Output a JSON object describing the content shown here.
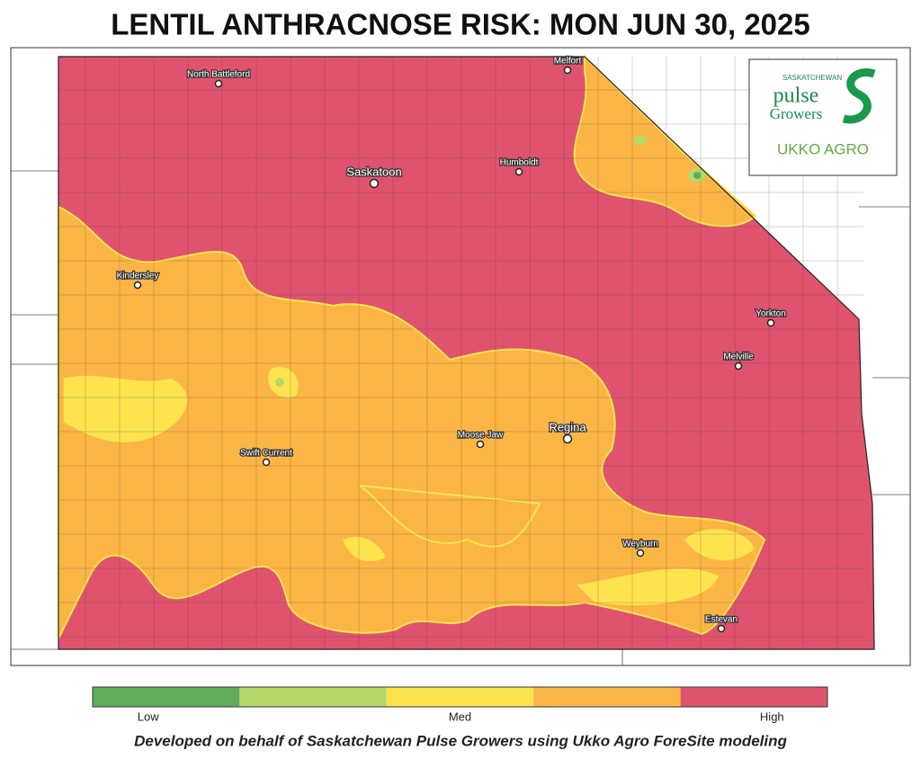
{
  "title": "LENTIL ANTHRACNOSE RISK: MON JUN 30, 2025",
  "cities": [
    "North Battleford",
    "Melfort",
    "Saskatoon",
    "Humboldt",
    "Kindersley",
    "Yorkton",
    "Melville",
    "Regina",
    "Moose Jaw",
    "Swift Current",
    "Weyburn",
    "Estevan"
  ],
  "logo": {
    "org_top": "SASKATCHEWAN",
    "org_main": "pulse",
    "org_sub": "Growers",
    "partner": "UKKO AGRO"
  },
  "legend": {
    "colors": [
      "#62ac5c",
      "#b5d86a",
      "#fde44f",
      "#fbb545",
      "#e0536f"
    ],
    "labels": [
      "Low",
      "Med",
      "High"
    ]
  },
  "footer": "Developed on behalf of Saskatchewan Pulse Growers using Ukko Agro ForeSite modeling"
}
